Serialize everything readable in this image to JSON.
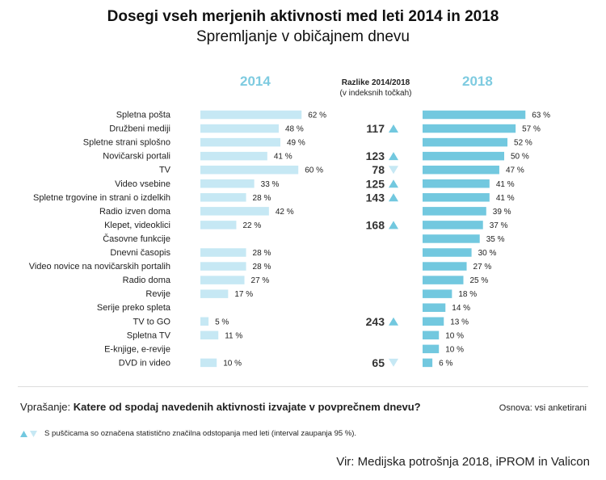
{
  "header": {
    "title": "Dosegi vseh merjenih aktivnosti med leti 2014 in 2018",
    "subtitle": "Spremljanje v običajnem dnevu",
    "diff_title": "Razlike 2014/2018",
    "diff_subtitle": "(v indeksnih točkah)"
  },
  "footer": {
    "question_label": "Vprašanje:",
    "question_text": "Katere od spodaj navedenih aktivnosti izvajate v povprečnem dnevu?",
    "base": "Osnova: vsi anketirani",
    "legend_text": "S puščicama so označena statistično značilna odstopanja med leti (interval zaupanja 95 %).",
    "source": "Vir: Medijska potrošnja 2018, iPROM in Valicon"
  },
  "colors": {
    "bar_2014": "#c6e8f4",
    "bar_2018": "#72c8df",
    "arrow_up": "#72c8df",
    "arrow_down": "#c6e8f4"
  },
  "chart_data": {
    "type": "bar",
    "orientation": "horizontal",
    "unit": "%",
    "xlim": [
      0,
      100
    ],
    "categories": [
      "Spletna pošta",
      "Družbeni mediji",
      "Spletne strani splošno",
      "Novičarski portali",
      "TV",
      "Video vsebine",
      "Spletne trgovine in strani o izdelkih",
      "Radio izven doma",
      "Klepet, videoklici",
      "Časovne funkcije",
      "Dnevni časopis",
      "Video novice na novičarskih portalih",
      "Radio doma",
      "Revije",
      "Serije preko spleta",
      "TV to GO",
      "Spletna TV",
      "E-knjige, e-revije",
      "DVD in video"
    ],
    "series": [
      {
        "name": "2014",
        "values": [
          62,
          48,
          49,
          41,
          60,
          33,
          28,
          42,
          22,
          null,
          28,
          28,
          27,
          17,
          null,
          5,
          11,
          null,
          10
        ]
      },
      {
        "name": "2018",
        "values": [
          63,
          57,
          52,
          50,
          47,
          41,
          41,
          39,
          37,
          35,
          30,
          27,
          25,
          18,
          14,
          13,
          10,
          10,
          6
        ]
      }
    ],
    "index_differences": [
      {
        "category": "Družbeni mediji",
        "index": 117,
        "direction": "up"
      },
      {
        "category": "Novičarski portali",
        "index": 123,
        "direction": "up"
      },
      {
        "category": "TV",
        "index": 78,
        "direction": "down"
      },
      {
        "category": "Video vsebine",
        "index": 125,
        "direction": "up"
      },
      {
        "category": "Spletne trgovine in strani o izdelkih",
        "index": 143,
        "direction": "up"
      },
      {
        "category": "Klepet, videoklici",
        "index": 168,
        "direction": "up"
      },
      {
        "category": "TV to GO",
        "index": 243,
        "direction": "up"
      },
      {
        "category": "DVD in video",
        "index": 65,
        "direction": "down"
      }
    ]
  }
}
